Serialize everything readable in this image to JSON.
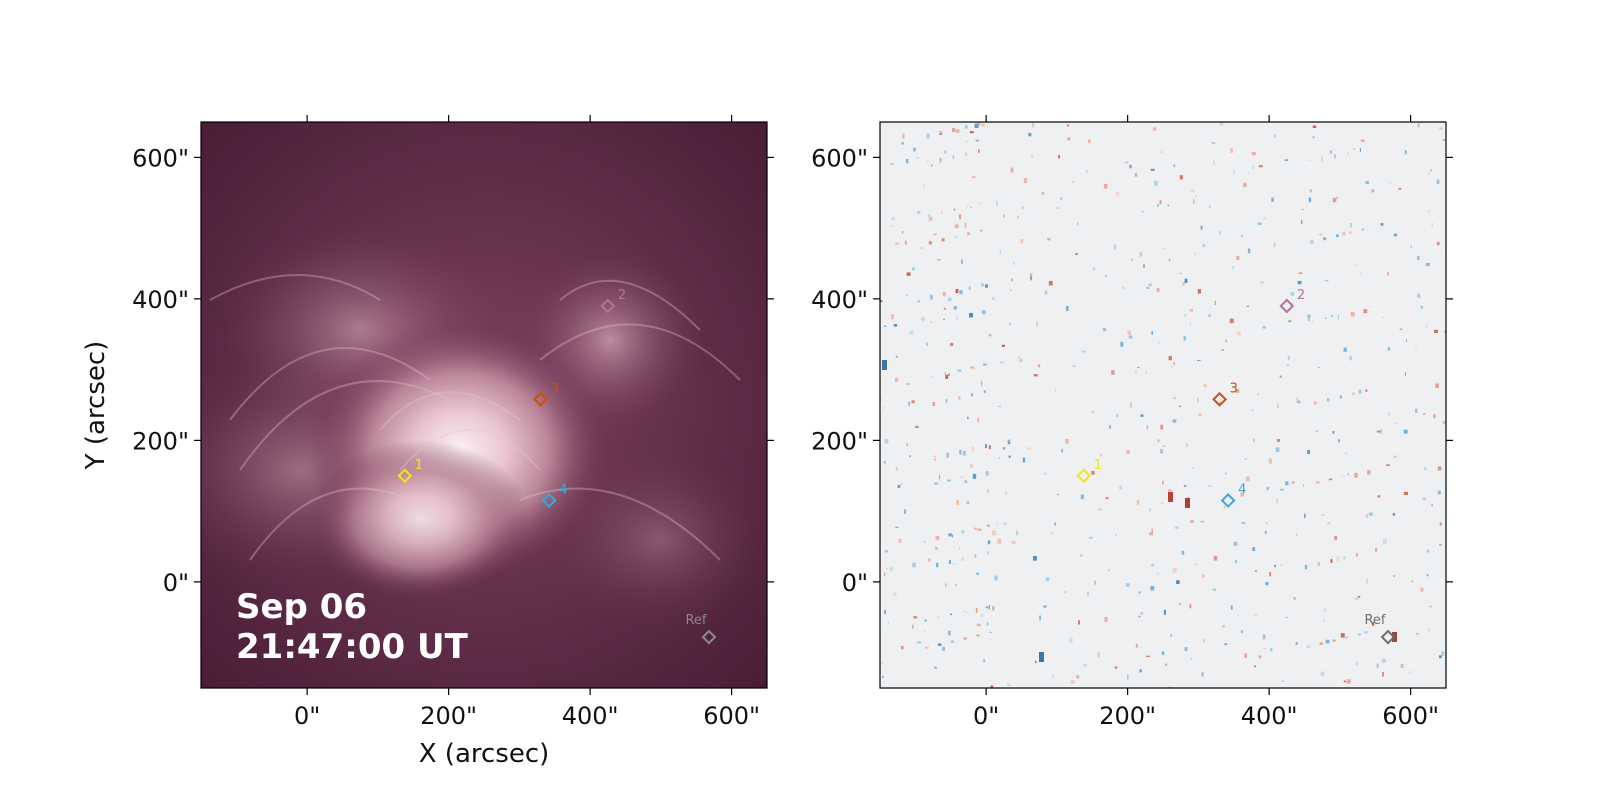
{
  "chart_data": [
    {
      "type": "image",
      "panel": "left",
      "colormap": "sdo-aia-dark-magenta",
      "xlabel": "X (arcsec)",
      "ylabel": "Y (arcsec)",
      "xlim": [
        -150,
        650
      ],
      "ylim": [
        -150,
        650
      ],
      "xticks": [
        0,
        200,
        400,
        600
      ],
      "yticks": [
        0,
        200,
        400,
        600
      ],
      "xtick_labels": [
        "0\"",
        "200\"",
        "400\"",
        "600\""
      ],
      "ytick_labels": [
        "0\"",
        "200\"",
        "400\"",
        "600\""
      ],
      "timestamp_line1": "Sep 06",
      "timestamp_line2": "21:47:00 UT",
      "markers": [
        {
          "label": "1",
          "x": 138,
          "y": 150,
          "color": "#f2e31a"
        },
        {
          "label": "2",
          "x": 425,
          "y": 390,
          "color": "#b5729f"
        },
        {
          "label": "3",
          "x": 330,
          "y": 258,
          "color": "#c9500e"
        },
        {
          "label": "4",
          "x": 342,
          "y": 115,
          "color": "#3ea5df"
        },
        {
          "label": "Ref",
          "x": 568,
          "y": -78,
          "color": "#8a8a8a"
        }
      ]
    },
    {
      "type": "image",
      "panel": "right",
      "colormap": "red-blue-diverging",
      "xlabel": "",
      "ylabel": "",
      "xlim": [
        -150,
        650
      ],
      "ylim": [
        -150,
        650
      ],
      "xticks": [
        0,
        200,
        400,
        600
      ],
      "yticks": [
        0,
        200,
        400,
        600
      ],
      "xtick_labels": [
        "0\"",
        "200\"",
        "400\"",
        "600\""
      ],
      "ytick_labels": [
        "0\"",
        "200\"",
        "400\"",
        "600\""
      ],
      "markers": [
        {
          "label": "1",
          "x": 138,
          "y": 150,
          "color": "#f2e31a"
        },
        {
          "label": "2",
          "x": 425,
          "y": 390,
          "color": "#b5729f"
        },
        {
          "label": "3",
          "x": 330,
          "y": 258,
          "color": "#c9500e"
        },
        {
          "label": "4",
          "x": 342,
          "y": 115,
          "color": "#3ea5df"
        },
        {
          "label": "Ref",
          "x": 568,
          "y": -78,
          "color": "#6e6e6e"
        }
      ]
    }
  ]
}
